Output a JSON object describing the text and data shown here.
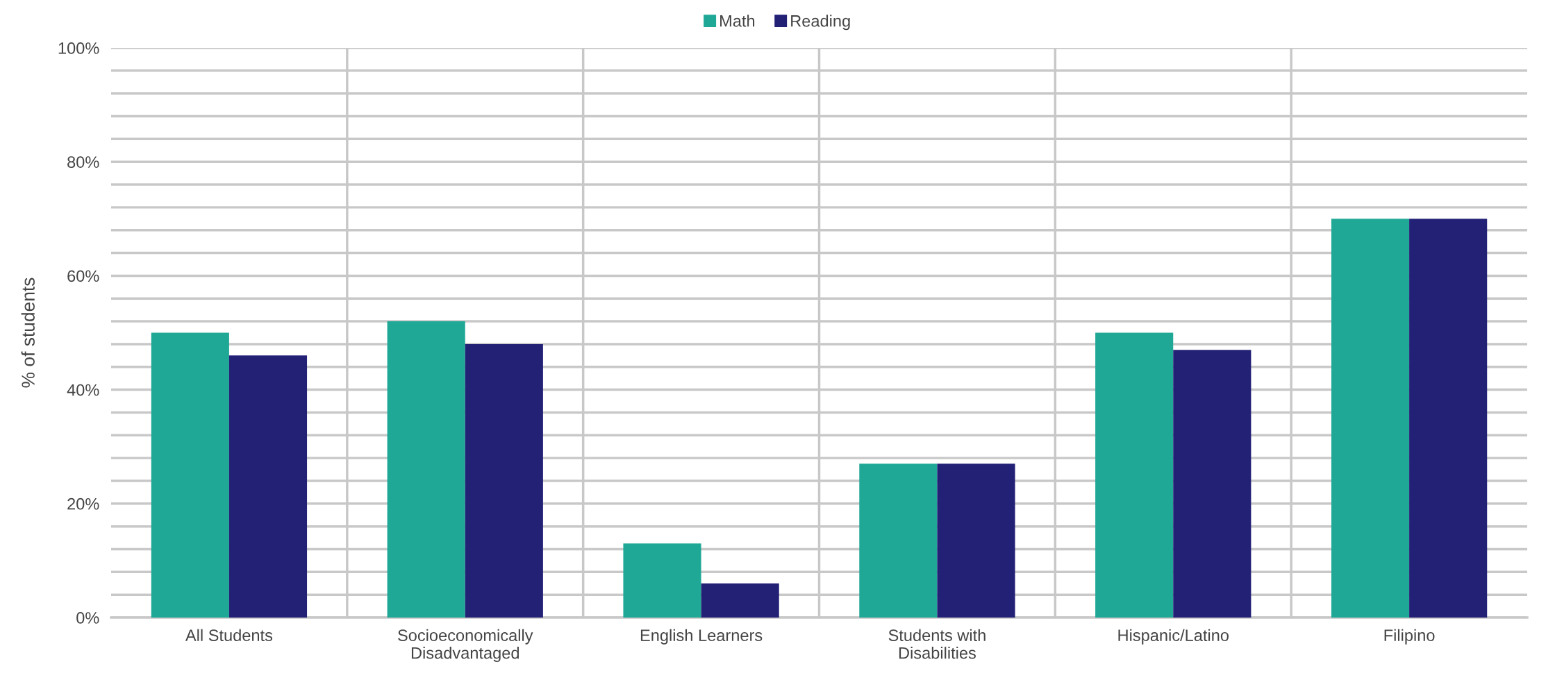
{
  "chart_data": {
    "type": "bar",
    "ylabel": "% of students",
    "categories": [
      "All Students",
      "Socioeconomically\nDisadvantaged",
      "English Learners",
      "Students with\nDisabilities",
      "Hispanic/Latino",
      "Filipino"
    ],
    "series": [
      {
        "name": "Math",
        "color": "#20a896",
        "values": [
          50,
          52,
          13,
          27,
          50,
          70
        ]
      },
      {
        "name": "Reading",
        "color": "#232176",
        "values": [
          46,
          48,
          6,
          27,
          47,
          70
        ]
      }
    ],
    "ylim": [
      0,
      100
    ],
    "yticks": [
      {
        "value": 0,
        "label": "0%"
      },
      {
        "value": 4,
        "label": null
      },
      {
        "value": 8,
        "label": null
      },
      {
        "value": 12,
        "label": null
      },
      {
        "value": 16,
        "label": null
      },
      {
        "value": 20,
        "label": "20%"
      },
      {
        "value": 24,
        "label": null
      },
      {
        "value": 28,
        "label": null
      },
      {
        "value": 32,
        "label": null
      },
      {
        "value": 36,
        "label": null
      },
      {
        "value": 40,
        "label": "40%"
      },
      {
        "value": 44,
        "label": null
      },
      {
        "value": 48,
        "label": null
      },
      {
        "value": 52,
        "label": null
      },
      {
        "value": 56,
        "label": null
      },
      {
        "value": 60,
        "label": "60%"
      },
      {
        "value": 64,
        "label": null
      },
      {
        "value": 68,
        "label": null
      },
      {
        "value": 72,
        "label": null
      },
      {
        "value": 76,
        "label": null
      },
      {
        "value": 80,
        "label": "80%"
      },
      {
        "value": 84,
        "label": null
      },
      {
        "value": 88,
        "label": null
      },
      {
        "value": 92,
        "label": null
      },
      {
        "value": 96,
        "label": null
      },
      {
        "value": 100,
        "label": "100%"
      }
    ],
    "grid": true,
    "legend": "top"
  }
}
